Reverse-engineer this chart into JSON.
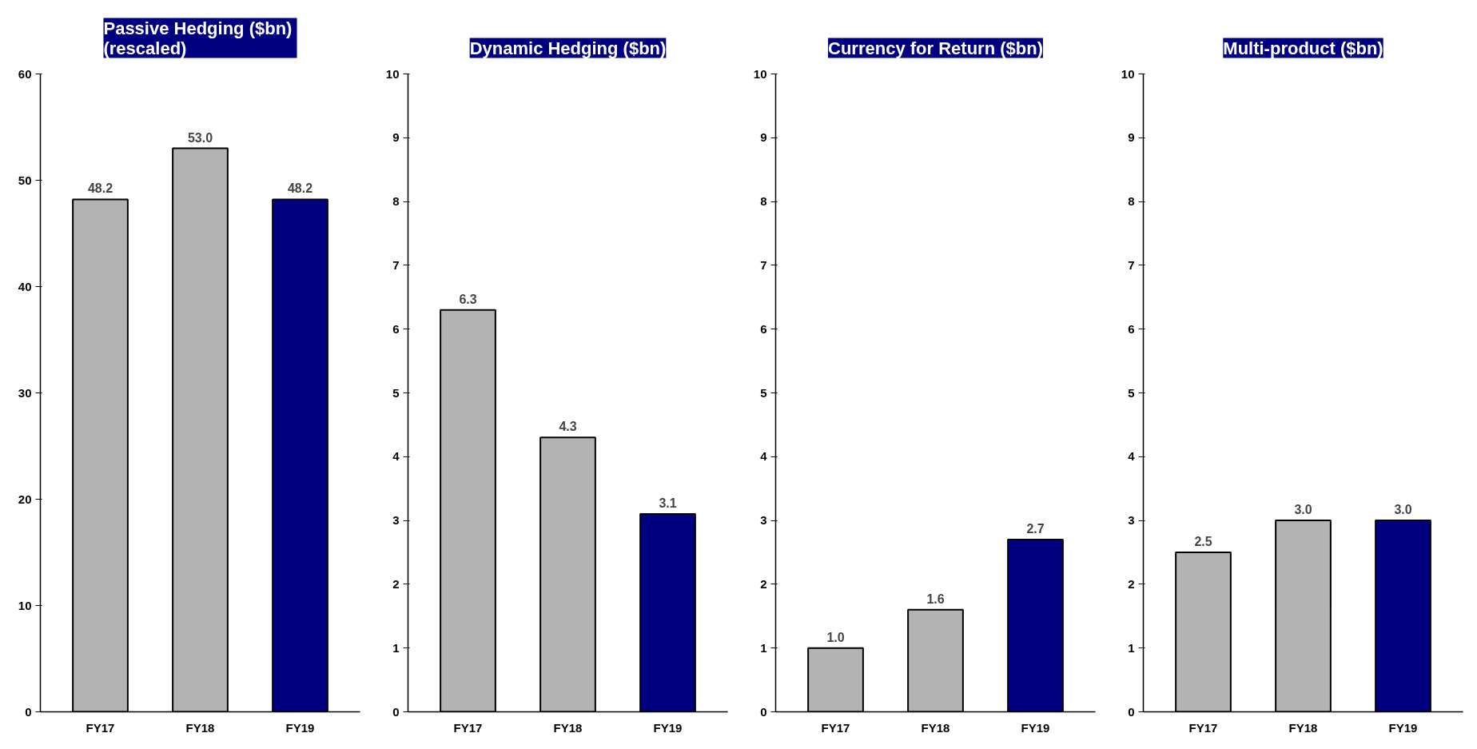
{
  "chart_data": [
    {
      "type": "bar",
      "title": "Passive Hedging  ($bn)\n(rescaled)",
      "categories": [
        "FY17",
        "FY18",
        "FY19"
      ],
      "values": [
        48.2,
        53.0,
        48.2
      ],
      "value_labels": [
        "48.2",
        "53.0",
        "48.2"
      ],
      "colors": [
        "#b3b3b3",
        "#b3b3b3",
        "#000080"
      ],
      "ylim": [
        0,
        60
      ],
      "yticks": [
        0,
        10,
        20,
        30,
        40,
        50,
        60
      ]
    },
    {
      "type": "bar",
      "title": "Dynamic Hedging ($bn)",
      "categories": [
        "FY17",
        "FY18",
        "FY19"
      ],
      "values": [
        6.3,
        4.3,
        3.1
      ],
      "value_labels": [
        "6.3",
        "4.3",
        "3.1"
      ],
      "colors": [
        "#b3b3b3",
        "#b3b3b3",
        "#000080"
      ],
      "ylim": [
        0,
        10
      ],
      "yticks": [
        0,
        1,
        2,
        3,
        4,
        5,
        6,
        7,
        8,
        9,
        10
      ]
    },
    {
      "type": "bar",
      "title": "Currency for Return ($bn)",
      "categories": [
        "FY17",
        "FY18",
        "FY19"
      ],
      "values": [
        1.0,
        1.6,
        2.7
      ],
      "value_labels": [
        "1.0",
        "1.6",
        "2.7"
      ],
      "colors": [
        "#b3b3b3",
        "#b3b3b3",
        "#000080"
      ],
      "ylim": [
        0,
        10
      ],
      "yticks": [
        0,
        1,
        2,
        3,
        4,
        5,
        6,
        7,
        8,
        9,
        10
      ]
    },
    {
      "type": "bar",
      "title": "Multi-product ($bn)",
      "categories": [
        "FY17",
        "FY18",
        "FY19"
      ],
      "values": [
        2.5,
        3.0,
        3.0
      ],
      "value_labels": [
        "2.5",
        "3.0",
        "3.0"
      ],
      "colors": [
        "#b3b3b3",
        "#b3b3b3",
        "#000080"
      ],
      "ylim": [
        0,
        10
      ],
      "yticks": [
        0,
        1,
        2,
        3,
        4,
        5,
        6,
        7,
        8,
        9,
        10
      ]
    }
  ]
}
